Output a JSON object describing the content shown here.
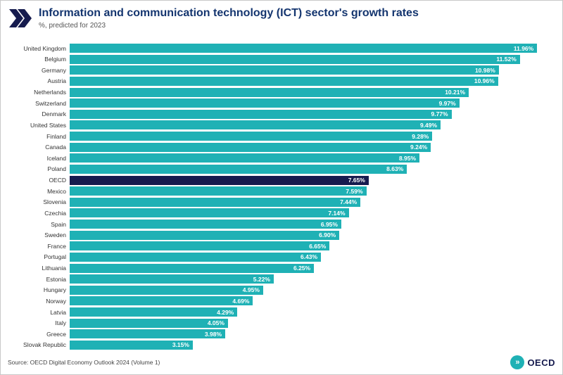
{
  "header": {
    "title": "Information and communication technology (ICT) sector's growth rates",
    "subtitle": "%, predicted for 2023"
  },
  "footer": {
    "source": "Source: OECD Digital Economy Outlook 2024 (Volume 1)",
    "logo_text": "OECD"
  },
  "colors": {
    "bar": "#1fb1b5",
    "highlight_bar": "#161b4e",
    "title": "#14356f"
  },
  "chart_data": {
    "type": "bar",
    "orientation": "horizontal",
    "title": "Information and communication technology (ICT) sector's growth rates",
    "subtitle": "%, predicted for 2023",
    "xlabel": "",
    "ylabel": "",
    "xlim": [
      0,
      12.1
    ],
    "grid": false,
    "legend": "none",
    "highlight_category": "OECD",
    "categories": [
      "United Kingdom",
      "Belgium",
      "Germany",
      "Austria",
      "Netherlands",
      "Switzerland",
      "Denmark",
      "United States",
      "Finland",
      "Canada",
      "Iceland",
      "Poland",
      "OECD",
      "Mexico",
      "Slovenia",
      "Czechia",
      "Spain",
      "Sweden",
      "France",
      "Portugal",
      "Lithuania",
      "Estonia",
      "Hungary",
      "Norway",
      "Latvia",
      "Italy",
      "Greece",
      "Slovak Republic"
    ],
    "values": [
      11.96,
      11.52,
      10.98,
      10.96,
      10.21,
      9.97,
      9.77,
      9.49,
      9.28,
      9.24,
      8.95,
      8.63,
      7.65,
      7.59,
      7.44,
      7.14,
      6.95,
      6.9,
      6.65,
      6.43,
      6.25,
      5.22,
      4.95,
      4.69,
      4.29,
      4.05,
      3.98,
      3.15
    ],
    "data_labels": [
      "11.96%",
      "11.52%",
      "10.98%",
      "10.96%",
      "10.21%",
      "9.97%",
      "9.77%",
      "9.49%",
      "9.28%",
      "9.24%",
      "8.95%",
      "8.63%",
      "7.65%",
      "7.59%",
      "7.44%",
      "7.14%",
      "6.95%",
      "6.90%",
      "6.65%",
      "6.43%",
      "6.25%",
      "5.22%",
      "4.95%",
      "4.69%",
      "4.29%",
      "4.05%",
      "3.98%",
      "3.15%"
    ]
  }
}
